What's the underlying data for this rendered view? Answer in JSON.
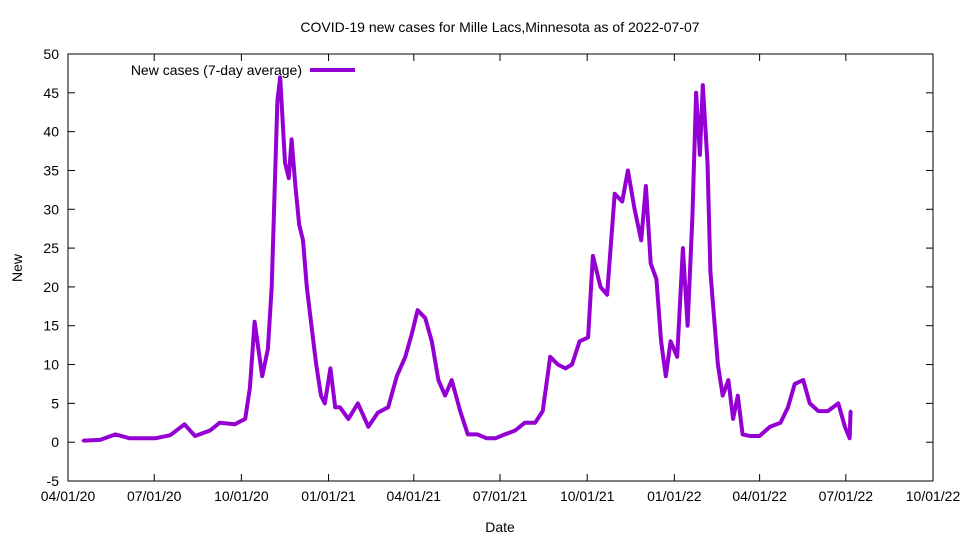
{
  "chart_data": {
    "type": "line",
    "title": "COVID-19 new cases for Mille Lacs,Minnesota as of 2022-07-07",
    "xlabel": "Date",
    "ylabel": "New",
    "ylim": [
      -5,
      50
    ],
    "yticks": [
      -5,
      0,
      5,
      10,
      15,
      20,
      25,
      30,
      35,
      40,
      45,
      50
    ],
    "xlim_days_from_start": [
      0,
      913
    ],
    "x_start_date": "2020-04-01",
    "xticks": [
      {
        "label": "04/01/20",
        "day": 0
      },
      {
        "label": "07/01/20",
        "day": 91
      },
      {
        "label": "10/01/20",
        "day": 183
      },
      {
        "label": "01/01/21",
        "day": 275
      },
      {
        "label": "04/01/21",
        "day": 365
      },
      {
        "label": "07/01/21",
        "day": 456
      },
      {
        "label": "10/01/21",
        "day": 548
      },
      {
        "label": "01/01/22",
        "day": 640
      },
      {
        "label": "04/01/22",
        "day": 730
      },
      {
        "label": "07/01/22",
        "day": 821
      },
      {
        "label": "10/01/22",
        "day": 913
      }
    ],
    "legend": {
      "position": "top-left",
      "entries": [
        "New cases (7-day average)"
      ]
    },
    "series": [
      {
        "name": "New cases (7-day average)",
        "color": "#9400d3",
        "x_days": [
          16,
          34,
          50,
          65,
          92,
          108,
          123,
          134,
          150,
          160,
          176,
          187,
          192,
          197,
          205,
          211,
          215,
          221,
          224,
          229,
          233,
          236,
          240,
          244,
          248,
          252,
          258,
          262,
          267,
          271,
          277,
          282,
          287,
          296,
          306,
          317,
          327,
          338,
          347,
          356,
          363,
          369,
          377,
          384,
          391,
          398,
          405,
          414,
          422,
          432,
          442,
          451,
          461,
          472,
          482,
          493,
          501,
          509,
          517,
          525,
          532,
          540,
          549,
          554,
          562,
          569,
          577,
          585,
          591,
          598,
          605,
          610,
          615,
          621,
          626,
          631,
          636,
          643,
          649,
          654,
          659,
          663,
          667,
          670,
          675,
          678,
          682,
          686,
          691,
          697,
          702,
          707,
          712,
          720,
          730,
          741,
          752,
          760,
          767,
          776,
          783,
          792,
          802,
          813,
          820,
          825,
          826
        ],
        "values": [
          0.2,
          0.3,
          1.0,
          0.5,
          0.5,
          0.9,
          2.3,
          0.8,
          1.5,
          2.5,
          2.3,
          3.0,
          7,
          15.5,
          8.5,
          12,
          20,
          44,
          47,
          36,
          34,
          39,
          33,
          28,
          26,
          20,
          14,
          10,
          6,
          5,
          9.5,
          4.5,
          4.5,
          3,
          5,
          2,
          3.8,
          4.5,
          8.5,
          11,
          14,
          17,
          16,
          13,
          8,
          6,
          8,
          4,
          1,
          1,
          0.5,
          0.5,
          1,
          1.5,
          2.5,
          2.5,
          4,
          11,
          10,
          9.5,
          10,
          13,
          13.5,
          24,
          20,
          19,
          32,
          31,
          35,
          30,
          26,
          33,
          23,
          21,
          13,
          8.5,
          13,
          11,
          25,
          15,
          29,
          45,
          37,
          46,
          36,
          22,
          16,
          10,
          6,
          8,
          3,
          6,
          1,
          0.8,
          0.8,
          2,
          2.5,
          4.5,
          7.5,
          8,
          5,
          4,
          4,
          5,
          2,
          0.5,
          4
        ]
      }
    ]
  }
}
